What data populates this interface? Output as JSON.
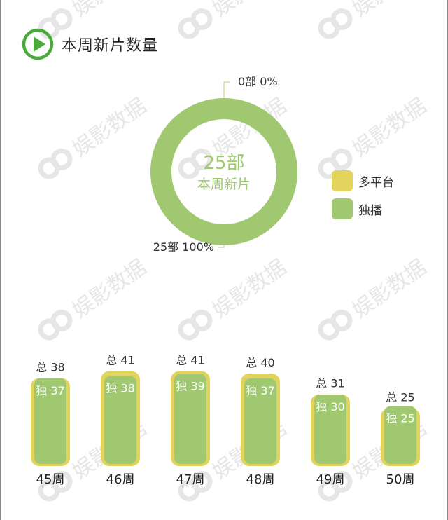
{
  "header": {
    "title": "本周新片数量",
    "icon": "play-circle-icon"
  },
  "colors": {
    "accent": "#4caa3c",
    "multi_platform": "#e2d35c",
    "exclusive": "#a0c870",
    "watermark": "#e6e6e6"
  },
  "watermark_text": "娱影数据",
  "chart_data": [
    {
      "type": "pie",
      "variant": "donut",
      "center": {
        "value": "25部",
        "label": "本周新片"
      },
      "total": 25,
      "slices": [
        {
          "name": "多平台",
          "value": 0,
          "percent": 0,
          "count_label": "0部",
          "percent_label": "0%",
          "color": "#e2d35c"
        },
        {
          "name": "独播",
          "value": 25,
          "percent": 100,
          "count_label": "25部",
          "percent_label": "100%",
          "color": "#a0c870"
        }
      ],
      "legend": [
        "多平台",
        "独播"
      ],
      "legend_position": "right"
    },
    {
      "type": "bar",
      "categories": [
        "45周",
        "46周",
        "47周",
        "48周",
        "49周",
        "50周"
      ],
      "series": [
        {
          "name": "总",
          "values": [
            38,
            41,
            41,
            40,
            31,
            25
          ],
          "color": "#e2d35c"
        },
        {
          "name": "独",
          "values": [
            37,
            38,
            39,
            37,
            30,
            25
          ],
          "color": "#a0c870"
        }
      ],
      "total_prefix": "总",
      "exclusive_prefix": "独"
    }
  ]
}
